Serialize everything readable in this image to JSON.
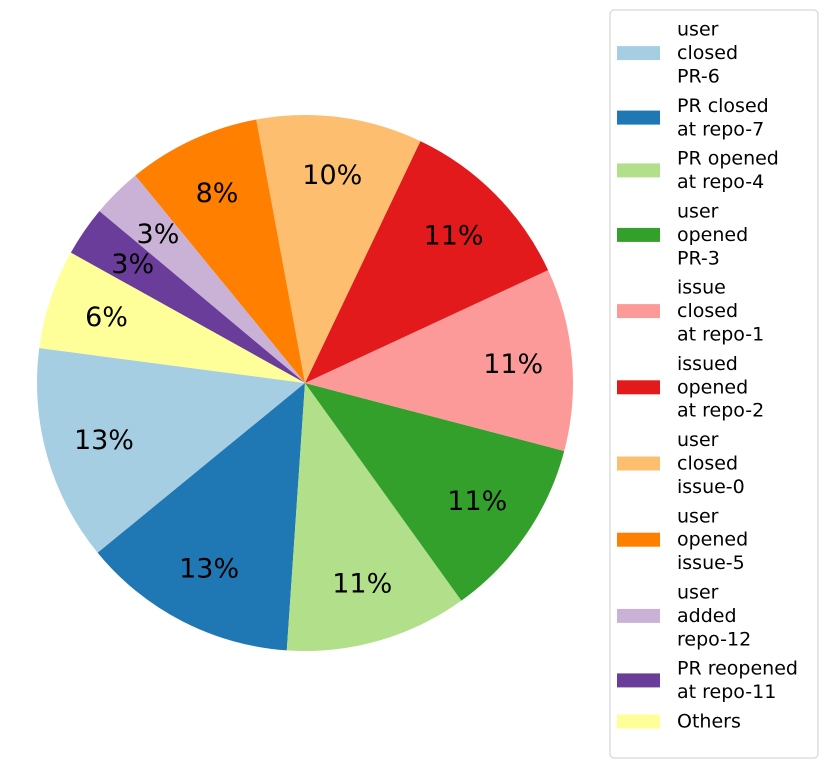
{
  "chart_data": {
    "type": "pie",
    "title": "",
    "start_angle_deg": 172.5,
    "direction": "counterclockwise",
    "legend_position": "right",
    "slices": [
      {
        "label": "user closed PR-6",
        "legend_lines": [
          "user",
          "closed",
          "PR-6"
        ],
        "value": 13,
        "pct_label": "13%",
        "color": "#a6cee3"
      },
      {
        "label": "PR closed at repo-7",
        "legend_lines": [
          "PR closed",
          "at repo-7"
        ],
        "value": 13,
        "pct_label": "13%",
        "color": "#1f78b4"
      },
      {
        "label": "PR opened at repo-4",
        "legend_lines": [
          "PR opened",
          "at repo-4"
        ],
        "value": 11,
        "pct_label": "11%",
        "color": "#b2df8a"
      },
      {
        "label": "user opened PR-3",
        "legend_lines": [
          "user",
          "opened",
          "PR-3"
        ],
        "value": 11,
        "pct_label": "11%",
        "color": "#33a02c"
      },
      {
        "label": "issue closed at repo-1",
        "legend_lines": [
          "issue",
          "closed",
          "at repo-1"
        ],
        "value": 11,
        "pct_label": "11%",
        "color": "#fb9a99"
      },
      {
        "label": "issued opened at repo-2",
        "legend_lines": [
          "issued",
          "opened",
          "at repo-2"
        ],
        "value": 11,
        "pct_label": "11%",
        "color": "#e31a1c"
      },
      {
        "label": "user closed issue-0",
        "legend_lines": [
          "user",
          "closed",
          "issue-0"
        ],
        "value": 10,
        "pct_label": "10%",
        "color": "#fdbf6f"
      },
      {
        "label": "user opened issue-5",
        "legend_lines": [
          "user",
          "opened",
          "issue-5"
        ],
        "value": 8,
        "pct_label": "8%",
        "color": "#ff7f00"
      },
      {
        "label": "user added repo-12",
        "legend_lines": [
          "user",
          "added",
          "repo-12"
        ],
        "value": 3,
        "pct_label": "3%",
        "color": "#cab2d6"
      },
      {
        "label": "PR reopened at repo-11",
        "legend_lines": [
          "PR reopened",
          "at repo-11"
        ],
        "value": 3,
        "pct_label": "3%",
        "color": "#6a3d9a"
      },
      {
        "label": "Others",
        "legend_lines": [
          "Others"
        ],
        "value": 6,
        "pct_label": "6%",
        "color": "#ffff99"
      }
    ]
  }
}
